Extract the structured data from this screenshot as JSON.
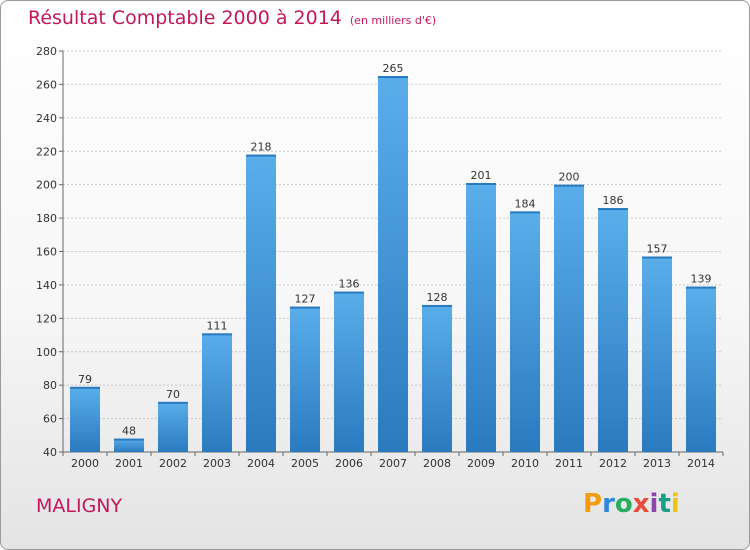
{
  "header": {
    "title": "Résultat Comptable 2000 à 2014",
    "unit": "(en milliers d'€)"
  },
  "footer": {
    "place": "MALIGNY",
    "logo_letters": [
      "P",
      "r",
      "o",
      "x",
      "i",
      "t",
      "i"
    ],
    "logo_colors": [
      "#f39c12",
      "#2e86de",
      "#27ae60",
      "#e74c3c",
      "#8e44ad",
      "#16a085",
      "#f1c40f"
    ]
  },
  "chart_data": {
    "type": "bar",
    "title": "Résultat Comptable 2000 à 2014",
    "subtitle": "(en milliers d'€)",
    "xlabel": "",
    "ylabel": "",
    "categories": [
      "2000",
      "2001",
      "2002",
      "2003",
      "2004",
      "2005",
      "2006",
      "2007",
      "2008",
      "2009",
      "2010",
      "2011",
      "2012",
      "2013",
      "2014"
    ],
    "values": [
      79,
      48,
      70,
      111,
      218,
      127,
      136,
      265,
      128,
      201,
      184,
      200,
      186,
      157,
      139
    ],
    "ylim": [
      40,
      280
    ],
    "yticks": [
      40,
      60,
      80,
      100,
      120,
      140,
      160,
      180,
      200,
      220,
      240,
      260,
      280
    ],
    "grid": true,
    "bar_color": "#4a9fe0",
    "bar_color_dark": "#2a7cc4"
  }
}
